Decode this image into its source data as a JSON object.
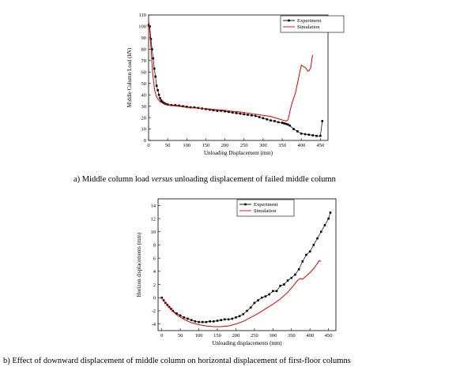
{
  "chart_data": [
    {
      "type": "line",
      "xlabel": "Unloading Displacement (mm)",
      "ylabel": "Middle Column Load (kN)",
      "xlim": [
        0,
        470
      ],
      "ylim": [
        0,
        110
      ],
      "xticks": [
        0,
        50,
        100,
        150,
        200,
        250,
        300,
        350,
        400,
        450
      ],
      "yticks": [
        0,
        10,
        20,
        30,
        40,
        50,
        60,
        70,
        80,
        90,
        100,
        110
      ],
      "legend_position": "top-right",
      "grid": false,
      "series": [
        {
          "name": "Experiment",
          "color": "#000000",
          "marker": "square",
          "x": [
            0,
            3,
            6,
            9,
            12,
            15,
            18,
            21,
            24,
            27,
            30,
            33,
            36,
            40,
            45,
            50,
            60,
            70,
            80,
            90,
            100,
            110,
            120,
            130,
            140,
            150,
            160,
            170,
            180,
            190,
            200,
            210,
            220,
            230,
            240,
            250,
            260,
            270,
            280,
            290,
            300,
            310,
            320,
            330,
            340,
            350,
            355,
            360,
            365,
            370,
            380,
            390,
            400,
            410,
            420,
            430,
            440,
            450,
            455
          ],
          "y": [
            101,
            100,
            89,
            80,
            72,
            63,
            56,
            48,
            44,
            40,
            37,
            35,
            34,
            33,
            32,
            31.5,
            31,
            31,
            30.5,
            30,
            29.5,
            29,
            29,
            28.5,
            28,
            27.5,
            27,
            26.5,
            26,
            26,
            25.5,
            25,
            24.5,
            24,
            23.5,
            23,
            22.5,
            22,
            21.5,
            20.5,
            19.5,
            18.5,
            17.5,
            17,
            16,
            15.5,
            15,
            14.5,
            14,
            13,
            10,
            8,
            6,
            5.5,
            5,
            4.5,
            4,
            4,
            17
          ]
        },
        {
          "name": "Simulation",
          "color": "#e00000",
          "marker": "none",
          "x": [
            0,
            2,
            4,
            6,
            8,
            10,
            13,
            16,
            20,
            25,
            30,
            35,
            40,
            50,
            60,
            80,
            100,
            120,
            140,
            160,
            180,
            200,
            220,
            240,
            260,
            280,
            300,
            320,
            340,
            350,
            360,
            365,
            368,
            372,
            376,
            380,
            385,
            390,
            395,
            400,
            405,
            410,
            413,
            416,
            420,
            425,
            428,
            430
          ],
          "y": [
            105,
            100,
            92,
            82,
            72,
            62,
            52,
            44,
            39,
            36,
            34,
            33,
            32,
            31,
            30.5,
            30,
            29,
            28.5,
            28,
            27.5,
            27,
            26.5,
            25.5,
            25,
            24,
            23,
            22,
            21,
            19,
            18,
            17,
            18,
            22,
            28,
            33,
            37,
            42,
            50,
            58,
            66,
            65,
            64,
            63,
            61,
            61,
            64,
            72,
            75
          ]
        }
      ]
    },
    {
      "type": "line",
      "xlabel": "Unloading displacements (mm)",
      "ylabel": "Horizon displacements (mm)",
      "xlim": [
        -10,
        470
      ],
      "ylim": [
        -5,
        15
      ],
      "xticks": [
        0,
        50,
        100,
        150,
        200,
        250,
        300,
        350,
        400,
        450
      ],
      "yticks": [
        -4,
        -2,
        0,
        2,
        4,
        6,
        8,
        10,
        12,
        14
      ],
      "legend_position": "top-left",
      "grid": false,
      "series": [
        {
          "name": "Experiment",
          "color": "#000000",
          "marker": "square",
          "x": [
            0,
            5,
            10,
            15,
            20,
            25,
            30,
            40,
            50,
            60,
            70,
            80,
            90,
            100,
            110,
            120,
            130,
            140,
            150,
            160,
            170,
            180,
            190,
            200,
            210,
            220,
            230,
            240,
            250,
            260,
            270,
            280,
            290,
            300,
            310,
            320,
            330,
            340,
            350,
            360,
            370,
            380,
            390,
            400,
            410,
            420,
            430,
            440,
            450,
            455
          ],
          "y": [
            0,
            -0.4,
            -0.8,
            -1.1,
            -1.4,
            -1.7,
            -2,
            -2.4,
            -2.7,
            -3,
            -3.2,
            -3.4,
            -3.6,
            -3.7,
            -3.7,
            -3.7,
            -3.6,
            -3.6,
            -3.5,
            -3.4,
            -3.3,
            -3.3,
            -3.2,
            -3.0,
            -2.8,
            -2.5,
            -2.0,
            -1.5,
            -0.8,
            -0.4,
            0,
            0.2,
            0.5,
            1,
            1,
            1.8,
            2,
            2.6,
            3,
            3.5,
            4.3,
            5.5,
            6.5,
            7,
            8,
            9,
            10,
            11,
            12,
            12.9
          ]
        },
        {
          "name": "Simulation",
          "color": "#e00000",
          "marker": "none",
          "x": [
            0,
            10,
            20,
            40,
            60,
            80,
            100,
            120,
            140,
            160,
            180,
            200,
            220,
            240,
            260,
            280,
            300,
            320,
            340,
            355,
            365,
            370,
            375,
            380,
            390,
            400,
            410,
            420,
            425,
            430
          ],
          "y": [
            0,
            -0.8,
            -1.5,
            -2.6,
            -3.3,
            -3.8,
            -4.1,
            -4.3,
            -4.4,
            -4.4,
            -4.3,
            -4.0,
            -3.6,
            -3.0,
            -2.4,
            -1.7,
            -1.0,
            -0.2,
            0.8,
            1.8,
            2.5,
            2.8,
            2.9,
            2.8,
            3.3,
            3.8,
            4.4,
            5.2,
            5.6,
            5.5
          ]
        }
      ]
    }
  ],
  "captions": {
    "a": "a) Middle column load versus unloading displacement of failed middle column",
    "b": "b) Effect of downward displacement of middle column on horizontal displacement of first-floor columns"
  }
}
